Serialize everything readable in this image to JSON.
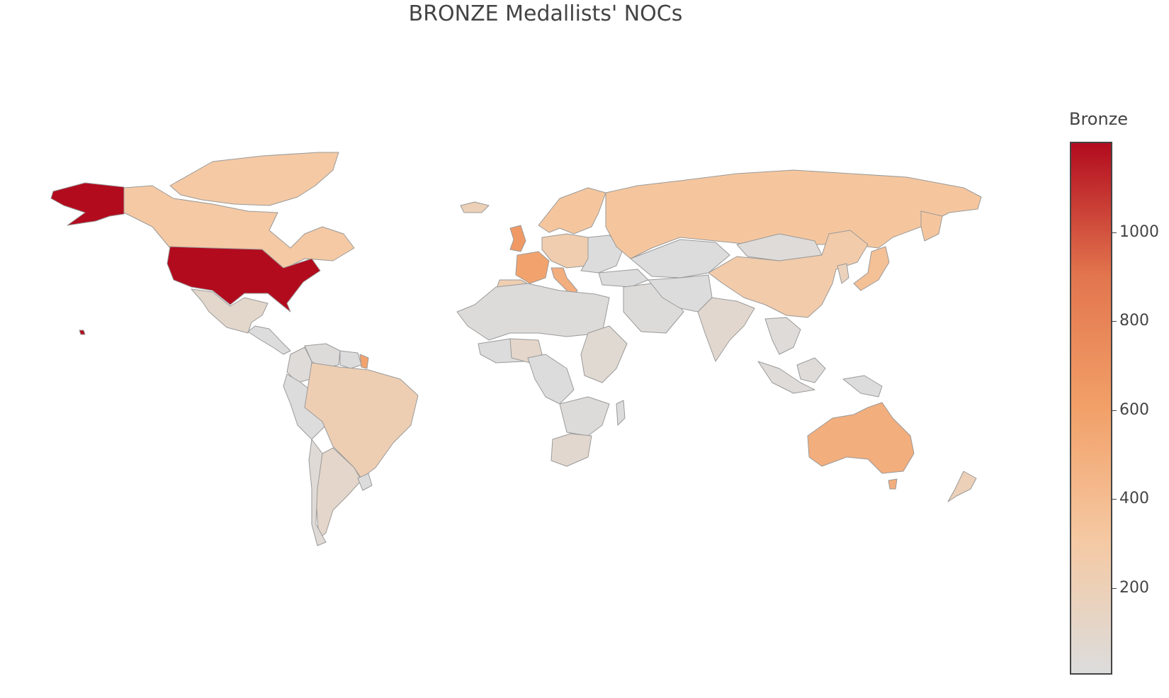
{
  "chart_data": {
    "type": "choropleth",
    "title": "BRONZE Medallists' NOCs",
    "colorbar": {
      "title": "Bronze",
      "ticks": [
        200,
        400,
        600,
        800,
        1000
      ],
      "range": [
        8,
        1200
      ],
      "colorscale": [
        "#dcdcdc",
        "#f5c9a3",
        "#f2a068",
        "#e2754e",
        "#b20b1e"
      ]
    },
    "regions": [
      {
        "name": "United States",
        "value": 1200
      },
      {
        "name": "Canada",
        "value": 300
      },
      {
        "name": "Mexico",
        "value": 90
      },
      {
        "name": "Greenland",
        "value": 300
      },
      {
        "name": "Brazil",
        "value": 220
      },
      {
        "name": "Argentina",
        "value": 100
      },
      {
        "name": "Chile",
        "value": 40
      },
      {
        "name": "Colombia",
        "value": 30
      },
      {
        "name": "Venezuela",
        "value": 20
      },
      {
        "name": "French Guiana",
        "value": 580
      },
      {
        "name": "United Kingdom",
        "value": 650
      },
      {
        "name": "France",
        "value": 580
      },
      {
        "name": "Spain",
        "value": 230
      },
      {
        "name": "Italy",
        "value": 500
      },
      {
        "name": "Germany",
        "value": 250
      },
      {
        "name": "Scandinavia",
        "value": 330
      },
      {
        "name": "Iceland",
        "value": 200
      },
      {
        "name": "Russia",
        "value": 330
      },
      {
        "name": "China",
        "value": 270
      },
      {
        "name": "Japan",
        "value": 370
      },
      {
        "name": "Korea",
        "value": 170
      },
      {
        "name": "Mongolia",
        "value": 30
      },
      {
        "name": "India",
        "value": 80
      },
      {
        "name": "Middle East",
        "value": 25
      },
      {
        "name": "Australia",
        "value": 500
      },
      {
        "name": "New Zealand",
        "value": 200
      },
      {
        "name": "North Africa",
        "value": 20
      },
      {
        "name": "Nigeria",
        "value": 100
      },
      {
        "name": "East Africa",
        "value": 60
      },
      {
        "name": "South Africa",
        "value": 80
      },
      {
        "name": "Southern Africa",
        "value": 25
      },
      {
        "name": "Indonesia",
        "value": 30
      },
      {
        "name": "Southeast Asia",
        "value": 30
      }
    ]
  }
}
